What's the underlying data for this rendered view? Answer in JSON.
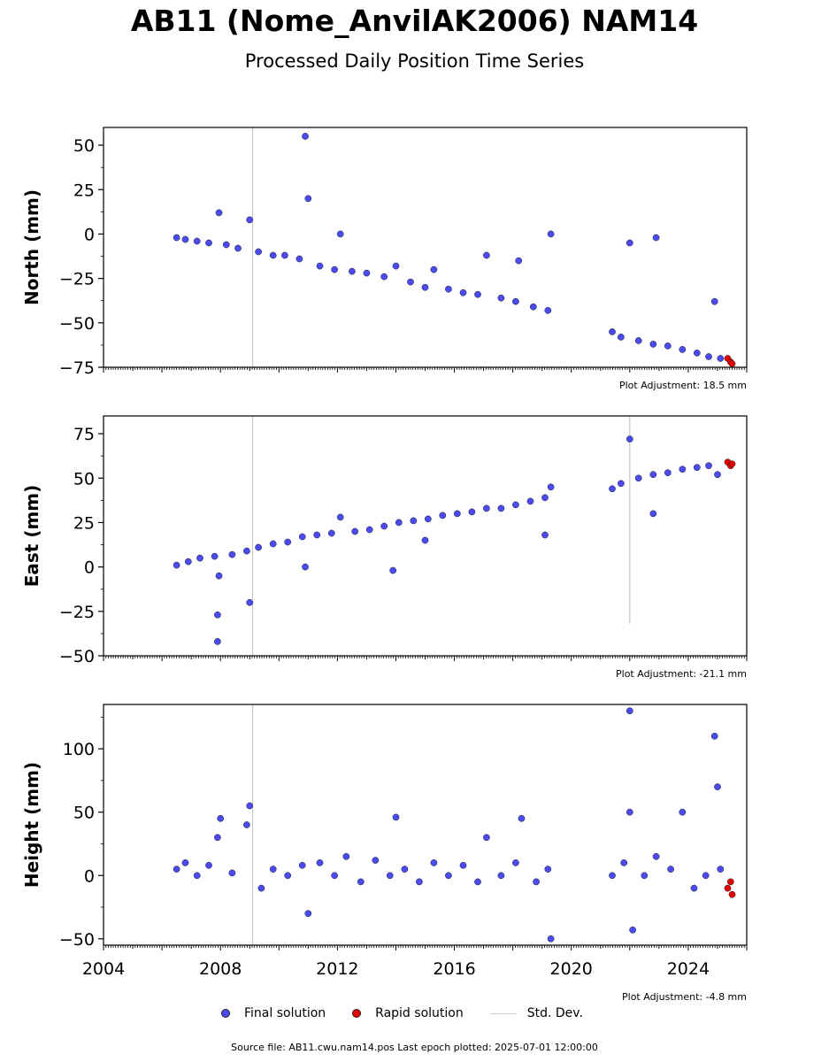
{
  "title": "AB11 (Nome_AnvilAK2006) NAM14",
  "subtitle": "Processed Daily Position Time Series",
  "legend": {
    "final": "Final solution",
    "rapid": "Rapid solution",
    "std": "Std. Dev."
  },
  "colors": {
    "final": "#4b4bf5",
    "rapid": "#e60000",
    "std": "#c8c8c8",
    "axis": "#000000"
  },
  "source_text": "Source file: AB11.cwu.nam14.pos  Last epoch plotted: 2025-07-01 12:00:00",
  "chart_data": [
    {
      "type": "scatter",
      "ylabel": "North (mm)",
      "adjustment": "Plot Adjustment: 18.5 mm",
      "ylim": [
        -75,
        60
      ],
      "yticks": [
        50,
        25,
        0,
        -25,
        -50,
        -75
      ],
      "xlim": [
        2004,
        2026
      ],
      "xticks": [],
      "final_series": [
        [
          2006.5,
          -2
        ],
        [
          2006.8,
          -3
        ],
        [
          2007.2,
          -4
        ],
        [
          2007.6,
          -5
        ],
        [
          2007.95,
          12
        ],
        [
          2008.2,
          -6
        ],
        [
          2008.6,
          -8
        ],
        [
          2009.0,
          8
        ],
        [
          2009.3,
          -10
        ],
        [
          2009.8,
          -12
        ],
        [
          2010.2,
          -12
        ],
        [
          2010.7,
          -14
        ],
        [
          2010.9,
          55
        ],
        [
          2011.0,
          20
        ],
        [
          2011.4,
          -18
        ],
        [
          2011.9,
          -20
        ],
        [
          2012.1,
          0
        ],
        [
          2012.5,
          -21
        ],
        [
          2013.0,
          -22
        ],
        [
          2013.6,
          -24
        ],
        [
          2014.0,
          -18
        ],
        [
          2014.5,
          -27
        ],
        [
          2015.0,
          -30
        ],
        [
          2015.3,
          -20
        ],
        [
          2015.8,
          -31
        ],
        [
          2016.3,
          -33
        ],
        [
          2016.8,
          -34
        ],
        [
          2017.1,
          -12
        ],
        [
          2017.6,
          -36
        ],
        [
          2018.1,
          -38
        ],
        [
          2018.2,
          -15
        ],
        [
          2018.7,
          -41
        ],
        [
          2019.2,
          -43
        ],
        [
          2019.3,
          0
        ],
        [
          2021.4,
          -55
        ],
        [
          2021.7,
          -58
        ],
        [
          2022.0,
          -5
        ],
        [
          2022.3,
          -60
        ],
        [
          2022.8,
          -62
        ],
        [
          2022.9,
          -2
        ],
        [
          2023.3,
          -63
        ],
        [
          2023.8,
          -65
        ],
        [
          2024.3,
          -67
        ],
        [
          2024.7,
          -69
        ],
        [
          2024.9,
          -38
        ],
        [
          2025.1,
          -70
        ]
      ],
      "rapid_series": [
        [
          2025.35,
          -70
        ],
        [
          2025.45,
          -72
        ],
        [
          2025.5,
          -73
        ]
      ]
    },
    {
      "type": "scatter",
      "ylabel": "East (mm)",
      "adjustment": "Plot Adjustment: -21.1 mm",
      "ylim": [
        -50,
        85
      ],
      "yticks": [
        75,
        50,
        25,
        0,
        -25,
        -50
      ],
      "xlim": [
        2004,
        2026
      ],
      "xticks": [],
      "final_series": [
        [
          2006.5,
          1
        ],
        [
          2006.9,
          3
        ],
        [
          2007.3,
          5
        ],
        [
          2007.8,
          6
        ],
        [
          2007.95,
          -5
        ],
        [
          2007.9,
          -27
        ],
        [
          2007.9,
          -42
        ],
        [
          2008.4,
          7
        ],
        [
          2008.9,
          9
        ],
        [
          2009.0,
          -20
        ],
        [
          2009.3,
          11
        ],
        [
          2009.8,
          13
        ],
        [
          2010.3,
          14
        ],
        [
          2010.8,
          17
        ],
        [
          2010.9,
          0
        ],
        [
          2011.3,
          18
        ],
        [
          2011.8,
          19
        ],
        [
          2012.1,
          28
        ],
        [
          2012.6,
          20
        ],
        [
          2013.1,
          21
        ],
        [
          2013.6,
          23
        ],
        [
          2013.9,
          -2
        ],
        [
          2014.1,
          25
        ],
        [
          2014.6,
          26
        ],
        [
          2015.0,
          15
        ],
        [
          2015.1,
          27
        ],
        [
          2015.6,
          29
        ],
        [
          2016.1,
          30
        ],
        [
          2016.6,
          31
        ],
        [
          2017.1,
          33
        ],
        [
          2017.6,
          33
        ],
        [
          2018.1,
          35
        ],
        [
          2018.6,
          37
        ],
        [
          2019.1,
          39
        ],
        [
          2019.1,
          18
        ],
        [
          2019.3,
          45
        ],
        [
          2021.4,
          44
        ],
        [
          2021.7,
          47
        ],
        [
          2022.0,
          72
        ],
        [
          2022.3,
          50
        ],
        [
          2022.8,
          52
        ],
        [
          2022.8,
          30
        ],
        [
          2023.3,
          53
        ],
        [
          2023.8,
          55
        ],
        [
          2024.3,
          56
        ],
        [
          2024.7,
          57
        ],
        [
          2025.0,
          52
        ]
      ],
      "rapid_series": [
        [
          2025.35,
          59
        ],
        [
          2025.45,
          57
        ],
        [
          2025.5,
          58
        ]
      ]
    },
    {
      "type": "scatter",
      "ylabel": "Height (mm)",
      "adjustment": "Plot Adjustment: -4.8 mm",
      "ylim": [
        -55,
        135
      ],
      "yticks": [
        100,
        50,
        0,
        -50
      ],
      "xlim": [
        2004,
        2026
      ],
      "xticks": [
        "2004",
        "2008",
        "2012",
        "2016",
        "2020",
        "2024"
      ],
      "final_series": [
        [
          2006.5,
          5
        ],
        [
          2006.8,
          10
        ],
        [
          2007.2,
          0
        ],
        [
          2007.6,
          8
        ],
        [
          2007.9,
          30
        ],
        [
          2008.0,
          45
        ],
        [
          2008.4,
          2
        ],
        [
          2008.9,
          40
        ],
        [
          2009.0,
          55
        ],
        [
          2009.4,
          -10
        ],
        [
          2009.8,
          5
        ],
        [
          2010.3,
          0
        ],
        [
          2010.8,
          8
        ],
        [
          2011.0,
          -30
        ],
        [
          2011.4,
          10
        ],
        [
          2011.9,
          0
        ],
        [
          2012.3,
          15
        ],
        [
          2012.8,
          -5
        ],
        [
          2013.3,
          12
        ],
        [
          2013.8,
          0
        ],
        [
          2014.0,
          46
        ],
        [
          2014.3,
          5
        ],
        [
          2014.8,
          -5
        ],
        [
          2015.3,
          10
        ],
        [
          2015.8,
          0
        ],
        [
          2016.3,
          8
        ],
        [
          2016.8,
          -5
        ],
        [
          2017.1,
          30
        ],
        [
          2017.6,
          0
        ],
        [
          2018.1,
          10
        ],
        [
          2018.3,
          45
        ],
        [
          2018.8,
          -5
        ],
        [
          2019.2,
          5
        ],
        [
          2019.3,
          -50
        ],
        [
          2021.4,
          0
        ],
        [
          2021.8,
          10
        ],
        [
          2022.0,
          130
        ],
        [
          2022.0,
          50
        ],
        [
          2022.1,
          -43
        ],
        [
          2022.5,
          0
        ],
        [
          2022.9,
          15
        ],
        [
          2023.4,
          5
        ],
        [
          2023.8,
          50
        ],
        [
          2024.2,
          -10
        ],
        [
          2024.6,
          0
        ],
        [
          2024.9,
          110
        ],
        [
          2025.0,
          70
        ],
        [
          2025.1,
          5
        ]
      ],
      "rapid_series": [
        [
          2025.35,
          -10
        ],
        [
          2025.45,
          -5
        ],
        [
          2025.5,
          -15
        ]
      ]
    }
  ]
}
